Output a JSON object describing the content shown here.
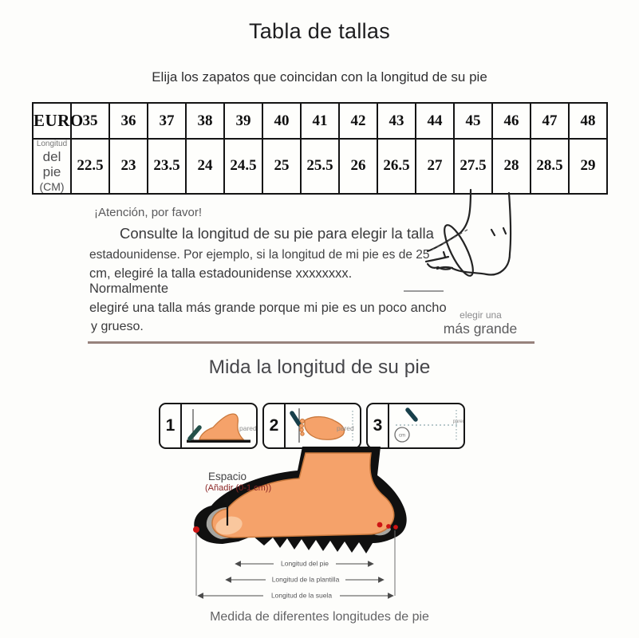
{
  "page": {
    "title": "Tabla de tallas",
    "subtitle": "Elija los zapatos que coincidan con la longitud de su pie"
  },
  "size_table": {
    "row1_header": "EURO",
    "row2_header_small": "Longitud",
    "row2_header_main": "del pie",
    "row2_header_unit": "(CM)",
    "sizes": [
      "35",
      "36",
      "37",
      "38",
      "39",
      "40",
      "41",
      "42",
      "43",
      "44",
      "45",
      "46",
      "47",
      "48"
    ],
    "lengths": [
      "22.5",
      "23",
      "23.5",
      "24",
      "24.5",
      "25",
      "25.5",
      "26",
      "26.5",
      "27",
      "27.5",
      "28",
      "28.5",
      "29"
    ]
  },
  "attention": {
    "lines": [
      "¡Atención, por favor!",
      "Consulte la longitud de su pie para elegir la talla",
      "estadounidense. Por ejemplo, si la longitud de mi pie es de 25",
      "cm, elegiré la talla estadounidense xxxxxxxx. Normalmente",
      "elegiré una talla más grande porque mi pie es un poco ancho",
      "y grueso."
    ],
    "note_small": "elegir una",
    "note_big": "más grande"
  },
  "measure": {
    "heading": "Mida la longitud de su pie",
    "steps": [
      {
        "number": "1",
        "wall_label": "pared"
      },
      {
        "number": "2",
        "wall_label": "pared"
      },
      {
        "number": "3",
        "wall_label": "pared",
        "badge": "cm"
      }
    ],
    "diagram": {
      "space_label": "Espacio",
      "space_note": "(Añadir (0-1 cm))",
      "arrow_labels": [
        "Longitud del pie",
        "Longitud de la plantilla",
        "Longitud de la suela"
      ]
    },
    "caption": "Medida de diferentes longitudes de pie"
  },
  "colors": {
    "divider": "#97827c",
    "foot_skin": "#f5a26a",
    "foot_outline": "#c9783c",
    "shoe_black": "#101010",
    "insole_gray": "#a6a6a2",
    "dot_red": "#cd1414",
    "pen_teal": "#1f4c4c",
    "space_note_red": "#8c2626"
  }
}
